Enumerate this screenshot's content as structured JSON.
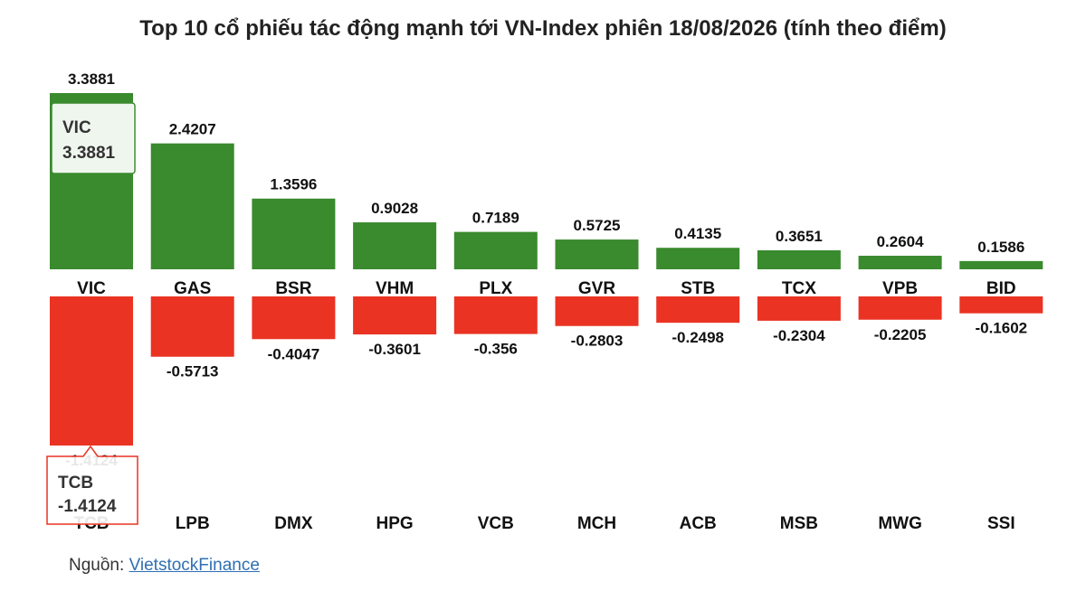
{
  "title": "Top 10 cổ phiếu tác động mạnh tới VN-Index phiên 18/08/2026 (tính theo điểm)",
  "source": {
    "label": "Nguồn:",
    "link_text": "VietstockFinance"
  },
  "colors": {
    "positive": "#3a8a2e",
    "negative": "#ea3323",
    "positive_tooltip_border": "#3a8a2e",
    "negative_tooltip_border": "#ea3323"
  },
  "tooltips": [
    {
      "ticker": "VIC",
      "value": "3.3881",
      "series": "positive"
    },
    {
      "ticker": "TCB",
      "value": "-1.4124",
      "series": "negative"
    }
  ],
  "chart_data": {
    "type": "bar",
    "title": "Top 10 cổ phiếu tác động mạnh tới VN-Index phiên 18/08/2026 (tính theo điểm)",
    "series": [
      {
        "categories": [
          "VIC",
          "GAS",
          "BSR",
          "VHM",
          "PLX",
          "GVR",
          "STB",
          "TCX",
          "VPB",
          "BID"
        ],
        "values": [
          3.3881,
          2.4207,
          1.3596,
          0.9028,
          0.7189,
          0.5725,
          0.4135,
          0.3651,
          0.2604,
          0.1586
        ],
        "labels": [
          "3.3881",
          "2.4207",
          "1.3596",
          "0.9028",
          "0.7189",
          "0.5725",
          "0.4135",
          "0.3651",
          "0.2604",
          "0.1586"
        ]
      },
      {
        "categories": [
          "TCB",
          "LPB",
          "DMX",
          "HPG",
          "VCB",
          "MCH",
          "ACB",
          "MSB",
          "MWG",
          "SSI"
        ],
        "values": [
          -1.4124,
          -0.5713,
          -0.4047,
          -0.3601,
          -0.356,
          -0.2803,
          -0.2498,
          -0.2304,
          -0.2205,
          -0.1602
        ],
        "labels": [
          "-1.4124",
          "-0.5713",
          "-0.4047",
          "-0.3601",
          "-0.356",
          "-0.2803",
          "-0.2498",
          "-0.2304",
          "-0.2205",
          "-0.1602"
        ]
      }
    ],
    "grid": false,
    "legend": "none"
  }
}
